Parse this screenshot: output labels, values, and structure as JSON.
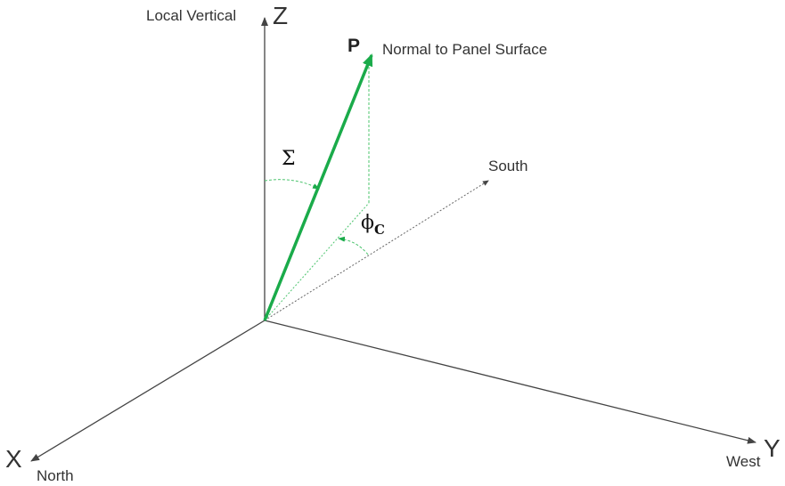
{
  "labels": {
    "local_vertical": "Local Vertical",
    "z_axis": "Z",
    "x_axis": "X",
    "y_axis": "Y",
    "north": "North",
    "west": "West",
    "south": "South",
    "p_vector": "P",
    "normal": "Normal to Panel Surface",
    "sigma": "Σ",
    "phi": "ϕ",
    "phi_sub": "C"
  },
  "colors": {
    "vector": "#1aab4a",
    "axis": "#444444",
    "guide": "#4cc46e"
  }
}
